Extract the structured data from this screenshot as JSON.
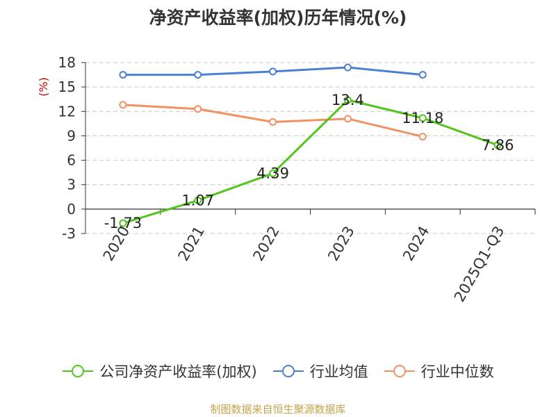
{
  "title": "净资产收益率(加权)历年情况(%)",
  "source": "制图数据来自恒生聚源数据库",
  "chart_data": {
    "type": "line",
    "title": "净资产收益率(加权)历年情况(%)",
    "ylabel": "(%)",
    "categories": [
      "2020",
      "2021",
      "2022",
      "2023",
      "2024",
      "2025Q1-Q3"
    ],
    "ylim": [
      -3,
      18
    ],
    "yticks": [
      "18",
      "15",
      "12",
      "9",
      "6",
      "3",
      "0",
      "-3"
    ],
    "grid": true,
    "legend_position": "bottom",
    "series": [
      {
        "name": "公司净资产收益率(加权)",
        "color": "#52c41a",
        "values": [
          -1.73,
          1.07,
          4.39,
          13.4,
          11.18,
          7.86
        ],
        "labels": [
          "-1.73",
          "1.07",
          "4.39",
          "13.4",
          "11.18",
          "7.86"
        ]
      },
      {
        "name": "行业均值",
        "color": "#4a7fd4",
        "values": [
          16.5,
          16.5,
          16.9,
          17.4,
          16.5,
          null
        ]
      },
      {
        "name": "行业中位数",
        "color": "#f39061",
        "values": [
          12.8,
          12.3,
          10.7,
          11.1,
          8.9,
          null
        ]
      }
    ]
  }
}
